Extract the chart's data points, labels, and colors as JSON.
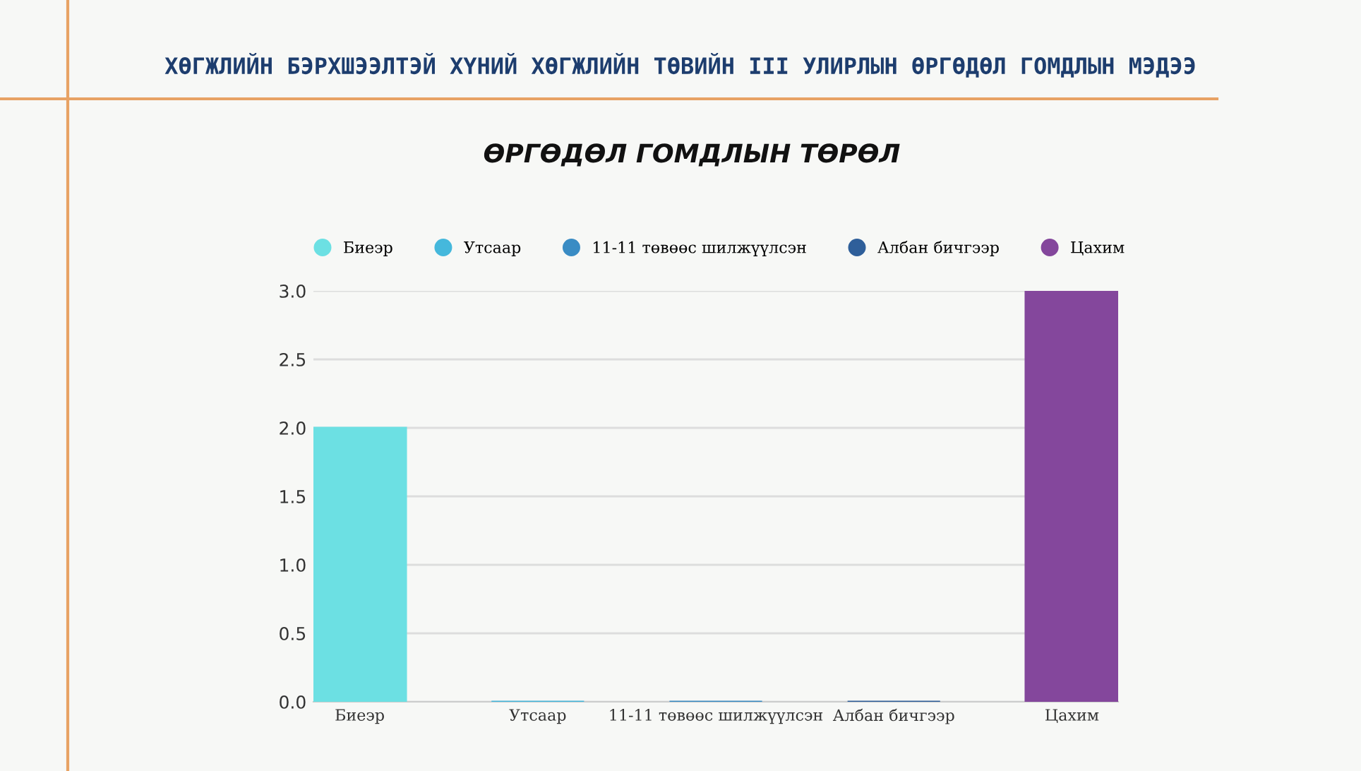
{
  "chart_data": {
    "type": "bar",
    "title": "ХӨГЖЛИЙН БЭРХШЭЭЛТЭЙ ХҮНИЙ ХӨГЖЛИЙН ТӨВИЙН III УЛИРЛЫН ӨРГӨДӨЛ ГОМДЛЫН МЭДЭЭ",
    "subtitle": "ӨРГӨДӨЛ ГОМДЛЫН ТӨРӨЛ",
    "categories": [
      "Биеэр",
      "Утсаар",
      "11-11 төвөөс шилжүүлсэн",
      "Албан бичгээр",
      "Цахим"
    ],
    "series": [
      {
        "name": "Биеэр",
        "color": "#6ce0e3",
        "values": [
          2,
          null,
          null,
          null,
          null
        ]
      },
      {
        "name": "Утсаар",
        "color": "#45b8dc",
        "values": [
          null,
          0,
          null,
          null,
          null
        ]
      },
      {
        "name": "11-11 төвөөс шилжүүлсэн",
        "color": "#3a8cc4",
        "values": [
          null,
          null,
          0,
          null,
          null
        ]
      },
      {
        "name": "Албан бичгээр",
        "color": "#2f5f9a",
        "values": [
          null,
          null,
          null,
          0,
          null
        ]
      },
      {
        "name": "Цахим",
        "color": "#84479c",
        "values": [
          null,
          null,
          null,
          null,
          3
        ]
      }
    ],
    "ylim": [
      0,
      3
    ],
    "yticks": [
      {
        "value": 0,
        "label": "0.0"
      },
      {
        "value": 0.5,
        "label": "0.5"
      },
      {
        "value": 1,
        "label": "1.0"
      },
      {
        "value": 1.5,
        "label": "1.5"
      },
      {
        "value": 2,
        "label": "2.0"
      },
      {
        "value": 2.5,
        "label": "2.5"
      },
      {
        "value": 3,
        "label": "3.0"
      }
    ],
    "grid": "y",
    "legend": "top"
  }
}
